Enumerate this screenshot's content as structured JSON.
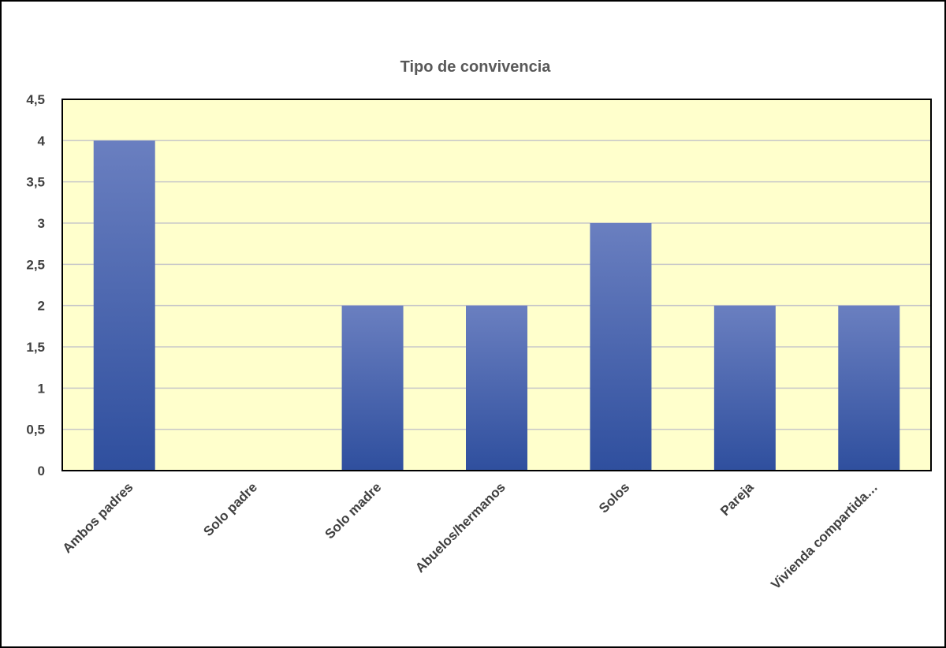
{
  "chart_data": {
    "type": "bar",
    "title": "Tipo de convivencia",
    "categories": [
      "Ambos padres",
      "Solo padre",
      "Solo madre",
      "Abuelos/hermanos",
      "Solos",
      "Pareja",
      "Vivienda compartida…"
    ],
    "values": [
      4,
      0,
      2,
      2,
      3,
      2,
      2
    ],
    "ylim": [
      0,
      4.5
    ],
    "yticks": [
      "0",
      "0,5",
      "1",
      "1,5",
      "2",
      "2,5",
      "3",
      "3,5",
      "4",
      "4,5"
    ],
    "grid": true,
    "legend": "none",
    "colors": {
      "plot_background": "#ffffcc",
      "bar_top": "#6a7fc0",
      "bar_bottom": "#2f4f9e",
      "gridline": "#c9c9c9",
      "plot_border": "#000000"
    }
  }
}
